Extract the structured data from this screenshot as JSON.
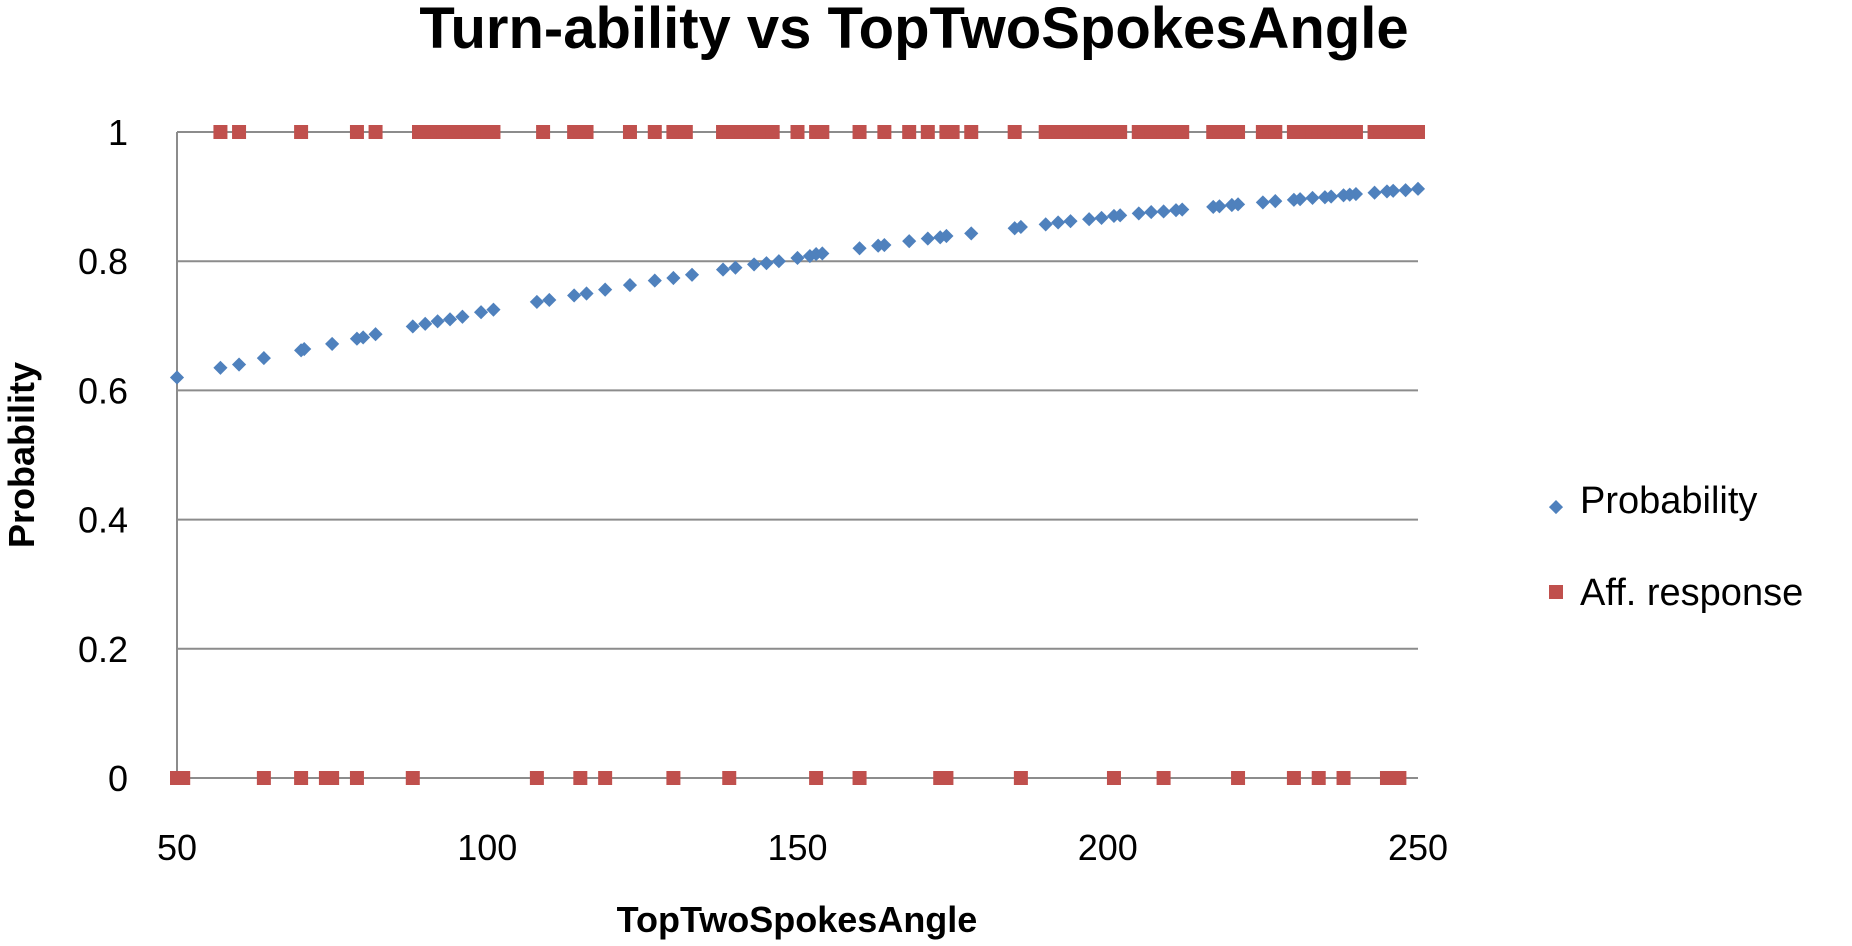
{
  "chart_data": {
    "type": "scatter",
    "title": "Turn-ability vs TopTwoSpokesAngle",
    "xlabel": "TopTwoSpokesAngle",
    "ylabel": "Probability",
    "xlim": [
      50,
      250
    ],
    "ylim": [
      0,
      1
    ],
    "x_ticks": [
      50,
      100,
      150,
      200,
      250
    ],
    "y_ticks": [
      0,
      0.2,
      0.4,
      0.6,
      0.8,
      1
    ],
    "x_tick_labels": [
      "50",
      "100",
      "150",
      "200",
      "250"
    ],
    "y_tick_labels": [
      "0",
      "0.2",
      "0.4",
      "0.6",
      "0.8",
      "1"
    ],
    "grid": "horizontal",
    "legend_position": "right",
    "series": [
      {
        "name": "Probability",
        "marker": "diamond",
        "color": "#4f81bd",
        "points": [
          [
            50,
            0.62
          ],
          [
            57,
            0.635
          ],
          [
            60,
            0.64
          ],
          [
            64,
            0.65
          ],
          [
            70,
            0.662
          ],
          [
            70.5,
            0.664
          ],
          [
            75,
            0.672
          ],
          [
            79,
            0.68
          ],
          [
            80,
            0.682
          ],
          [
            82,
            0.687
          ],
          [
            88,
            0.699
          ],
          [
            90,
            0.703
          ],
          [
            92,
            0.707
          ],
          [
            94,
            0.71
          ],
          [
            96,
            0.714
          ],
          [
            99,
            0.721
          ],
          [
            101,
            0.725
          ],
          [
            108,
            0.737
          ],
          [
            110,
            0.74
          ],
          [
            114,
            0.747
          ],
          [
            116,
            0.75
          ],
          [
            119,
            0.756
          ],
          [
            123,
            0.763
          ],
          [
            127,
            0.77
          ],
          [
            130,
            0.774
          ],
          [
            133,
            0.779
          ],
          [
            138,
            0.787
          ],
          [
            140,
            0.79
          ],
          [
            143,
            0.795
          ],
          [
            145,
            0.797
          ],
          [
            147,
            0.8
          ],
          [
            150,
            0.805
          ],
          [
            152,
            0.808
          ],
          [
            153,
            0.811
          ],
          [
            154,
            0.812
          ],
          [
            160,
            0.82
          ],
          [
            163,
            0.824
          ],
          [
            164,
            0.825
          ],
          [
            168,
            0.831
          ],
          [
            171,
            0.835
          ],
          [
            173,
            0.837
          ],
          [
            174,
            0.839
          ],
          [
            178,
            0.843
          ],
          [
            185,
            0.851
          ],
          [
            186,
            0.853
          ],
          [
            190,
            0.857
          ],
          [
            192,
            0.86
          ],
          [
            194,
            0.862
          ],
          [
            197,
            0.865
          ],
          [
            199,
            0.867
          ],
          [
            201,
            0.87
          ],
          [
            202,
            0.871
          ],
          [
            205,
            0.874
          ],
          [
            207,
            0.876
          ],
          [
            209,
            0.877
          ],
          [
            211,
            0.879
          ],
          [
            212,
            0.88
          ],
          [
            217,
            0.884
          ],
          [
            218,
            0.885
          ],
          [
            220,
            0.887
          ],
          [
            221,
            0.888
          ],
          [
            225,
            0.891
          ],
          [
            227,
            0.893
          ],
          [
            230,
            0.895
          ],
          [
            231,
            0.896
          ],
          [
            233,
            0.898
          ],
          [
            235,
            0.899
          ],
          [
            236,
            0.9
          ],
          [
            238,
            0.902
          ],
          [
            239,
            0.903
          ],
          [
            240,
            0.904
          ],
          [
            243,
            0.906
          ],
          [
            245,
            0.908
          ],
          [
            246,
            0.909
          ],
          [
            248,
            0.91
          ],
          [
            250,
            0.912
          ]
        ]
      },
      {
        "name": "Aff. response",
        "marker": "square",
        "color": "#c0504d",
        "points": [
          [
            57,
            1
          ],
          [
            60,
            1
          ],
          [
            70,
            1
          ],
          [
            79,
            1
          ],
          [
            82,
            1
          ],
          [
            89,
            1
          ],
          [
            91,
            1
          ],
          [
            92,
            1
          ],
          [
            93,
            1
          ],
          [
            94,
            1
          ],
          [
            95,
            1
          ],
          [
            96,
            1
          ],
          [
            97,
            1
          ],
          [
            99,
            1
          ],
          [
            100,
            1
          ],
          [
            101,
            1
          ],
          [
            109,
            1
          ],
          [
            114,
            1
          ],
          [
            115,
            1
          ],
          [
            116,
            1
          ],
          [
            123,
            1
          ],
          [
            127,
            1
          ],
          [
            130,
            1
          ],
          [
            132,
            1
          ],
          [
            138,
            1
          ],
          [
            139,
            1
          ],
          [
            140,
            1
          ],
          [
            141,
            1
          ],
          [
            143,
            1
          ],
          [
            144,
            1
          ],
          [
            146,
            1
          ],
          [
            150,
            1
          ],
          [
            153,
            1
          ],
          [
            154,
            1
          ],
          [
            160,
            1
          ],
          [
            164,
            1
          ],
          [
            168,
            1
          ],
          [
            171,
            1
          ],
          [
            174,
            1
          ],
          [
            175,
            1
          ],
          [
            178,
            1
          ],
          [
            185,
            1
          ],
          [
            190,
            1
          ],
          [
            192,
            1
          ],
          [
            194,
            1
          ],
          [
            195,
            1
          ],
          [
            197,
            1
          ],
          [
            198,
            1
          ],
          [
            199,
            1
          ],
          [
            201,
            1
          ],
          [
            202,
            1
          ],
          [
            205,
            1
          ],
          [
            206,
            1
          ],
          [
            207,
            1
          ],
          [
            208,
            1
          ],
          [
            209,
            1
          ],
          [
            210,
            1
          ],
          [
            211,
            1
          ],
          [
            212,
            1
          ],
          [
            217,
            1
          ],
          [
            218,
            1
          ],
          [
            219,
            1
          ],
          [
            220,
            1
          ],
          [
            221,
            1
          ],
          [
            225,
            1
          ],
          [
            226,
            1
          ],
          [
            227,
            1
          ],
          [
            230,
            1
          ],
          [
            231,
            1
          ],
          [
            232,
            1
          ],
          [
            233,
            1
          ],
          [
            234,
            1
          ],
          [
            235,
            1
          ],
          [
            236,
            1
          ],
          [
            237,
            1
          ],
          [
            238,
            1
          ],
          [
            239,
            1
          ],
          [
            240,
            1
          ],
          [
            243,
            1
          ],
          [
            244,
            1
          ],
          [
            245,
            1
          ],
          [
            246,
            1
          ],
          [
            247,
            1
          ],
          [
            248,
            1
          ],
          [
            250,
            1
          ],
          [
            50,
            0
          ],
          [
            51,
            0
          ],
          [
            64,
            0
          ],
          [
            70,
            0
          ],
          [
            74,
            0
          ],
          [
            75,
            0
          ],
          [
            79,
            0
          ],
          [
            88,
            0
          ],
          [
            108,
            0
          ],
          [
            115,
            0
          ],
          [
            119,
            0
          ],
          [
            130,
            0
          ],
          [
            139,
            0
          ],
          [
            153,
            0
          ],
          [
            160,
            0
          ],
          [
            173,
            0
          ],
          [
            174,
            0
          ],
          [
            186,
            0
          ],
          [
            201,
            0
          ],
          [
            209,
            0
          ],
          [
            221,
            0
          ],
          [
            230,
            0
          ],
          [
            234,
            0
          ],
          [
            238,
            0
          ],
          [
            245,
            0
          ],
          [
            247,
            0
          ]
        ]
      }
    ]
  }
}
